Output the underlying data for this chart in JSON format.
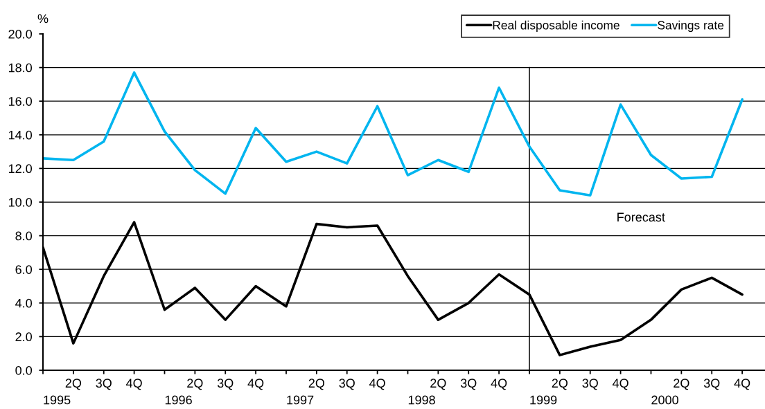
{
  "chart_data": {
    "type": "line",
    "ylabel": "%",
    "categories": [
      "1995",
      "2Q",
      "3Q",
      "4Q",
      "1996",
      "2Q",
      "3Q",
      "4Q",
      "1997",
      "2Q",
      "3Q",
      "4Q",
      "1998",
      "2Q",
      "3Q",
      "4Q",
      "1999",
      "2Q",
      "3Q",
      "4Q",
      "2000",
      "2Q",
      "3Q",
      "4Q"
    ],
    "series": [
      {
        "name": "Real disposable income",
        "color": "#000000",
        "values": [
          7.3,
          1.6,
          5.6,
          8.8,
          3.6,
          4.9,
          3.0,
          5.0,
          3.8,
          8.7,
          8.5,
          8.6,
          5.6,
          3.0,
          4.0,
          5.7,
          4.5,
          0.9,
          1.4,
          1.8,
          3.0,
          4.8,
          5.5,
          4.5
        ]
      },
      {
        "name": "Savings rate",
        "color": "#00b5ef",
        "values": [
          12.6,
          12.5,
          13.6,
          17.7,
          14.2,
          11.9,
          10.5,
          14.4,
          12.4,
          13.0,
          12.3,
          15.7,
          11.6,
          12.5,
          11.8,
          16.8,
          13.3,
          10.7,
          10.4,
          15.8,
          12.8,
          11.4,
          11.5,
          16.1
        ]
      }
    ],
    "ylim": [
      0,
      20
    ],
    "yticks": [
      {
        "value": 0,
        "label": "0.0"
      },
      {
        "value": 2,
        "label": "2.0"
      },
      {
        "value": 4,
        "label": "4.0"
      },
      {
        "value": 6,
        "label": "6.0"
      },
      {
        "value": 8,
        "label": "8.0"
      },
      {
        "value": 10,
        "label": "10.0"
      },
      {
        "value": 12,
        "label": "12.0"
      },
      {
        "value": 14,
        "label": "14.0"
      },
      {
        "value": 16,
        "label": "16.0"
      },
      {
        "value": 18,
        "label": "18.0"
      },
      {
        "value": 20,
        "label": "20.0"
      }
    ],
    "grid": "y",
    "legend": "top right",
    "line_style": "solid",
    "ref_lines": [
      {
        "axis": "x",
        "value": "1999",
        "color": "#000000",
        "line_style": "solid"
      }
    ],
    "annotations": [
      "Forecast"
    ]
  }
}
